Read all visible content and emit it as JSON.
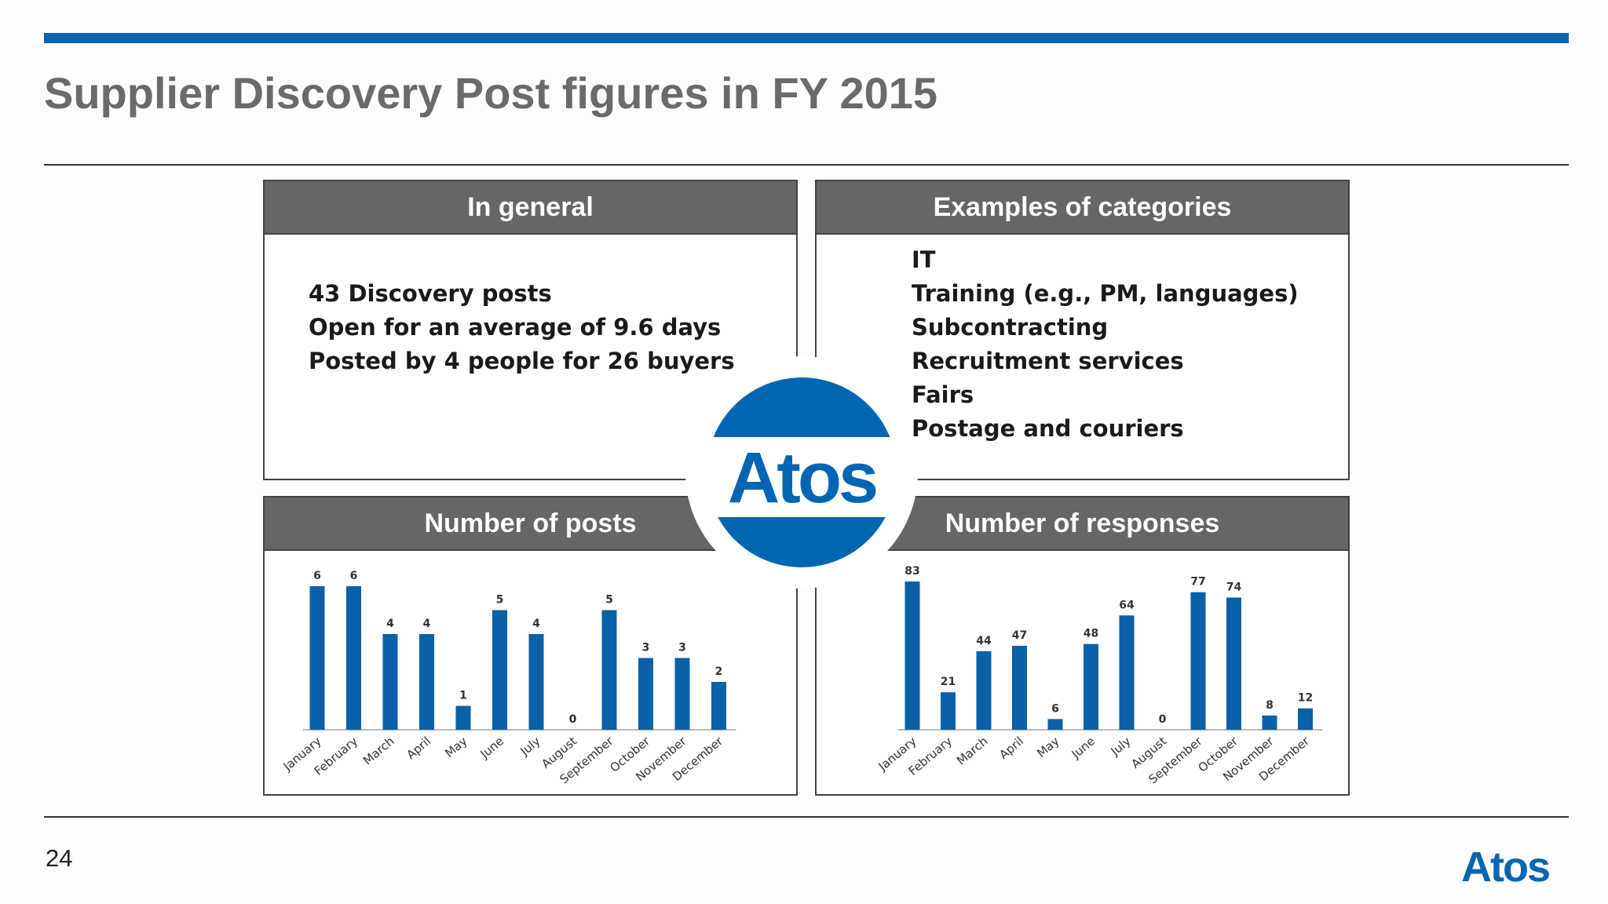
{
  "slide": {
    "title": "Supplier Discovery Post figures in FY 2015",
    "page_number": "24",
    "brand": "Atos",
    "brand_color": "#0066b3"
  },
  "general": {
    "header": "In general",
    "items": [
      "43 Discovery posts",
      "Open for an average of 9.6 days",
      "Posted by 4 people for 26 buyers"
    ]
  },
  "categories": {
    "header": "Examples of categories",
    "items": [
      "IT",
      "Training (e.g., PM, languages)",
      "Subcontracting",
      "Recruitment services",
      "Fairs",
      "Postage and couriers"
    ]
  },
  "chart_data": [
    {
      "type": "bar",
      "header": "Number of posts",
      "categories": [
        "January",
        "February",
        "March",
        "April",
        "May",
        "June",
        "July",
        "August",
        "September",
        "October",
        "November",
        "December"
      ],
      "values": [
        6,
        6,
        4,
        4,
        1,
        5,
        4,
        0,
        5,
        3,
        3,
        2
      ],
      "ylim": [
        0,
        6
      ],
      "bar_color": "#0a61a8",
      "data_labels": true,
      "grid": false,
      "legend": "none"
    },
    {
      "type": "bar",
      "header": "Number of responses",
      "categories": [
        "January",
        "February",
        "March",
        "April",
        "May",
        "June",
        "July",
        "August",
        "September",
        "October",
        "November",
        "December"
      ],
      "values": [
        83,
        21,
        44,
        47,
        6,
        48,
        64,
        0,
        77,
        74,
        8,
        12
      ],
      "ylim": [
        0,
        83
      ],
      "bar_color": "#0a61a8",
      "data_labels": true,
      "grid": false,
      "legend": "none"
    }
  ]
}
